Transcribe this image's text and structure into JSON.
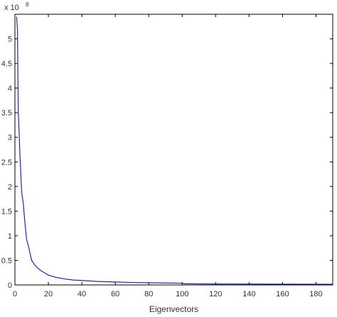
{
  "chart_data": {
    "type": "line",
    "title": "",
    "xlabel": "Eigenvectors",
    "ylabel": "",
    "y_exponent_label": "x 10",
    "y_exponent": "8",
    "xlim": [
      0,
      190
    ],
    "ylim": [
      0,
      5.5
    ],
    "x_ticks": [
      0,
      20,
      40,
      60,
      80,
      100,
      120,
      140,
      160,
      180
    ],
    "x_tick_labels": [
      "0",
      "20",
      "40",
      "60",
      "80",
      "100",
      "120",
      "140",
      "160",
      "180"
    ],
    "y_ticks": [
      0,
      0.5,
      1,
      1.5,
      2,
      2.5,
      3,
      3.5,
      4,
      4.5,
      5
    ],
    "y_tick_labels": [
      "0",
      "0.5",
      "1",
      "1.5",
      "2",
      "2.5",
      "3",
      "3.5",
      "4",
      "4.5",
      "5"
    ],
    "grid": false,
    "series": [
      {
        "color": "#1f2aa8",
        "x": [
          1,
          1.5,
          2,
          3,
          4,
          5,
          6,
          7,
          8,
          9,
          10,
          12,
          14,
          16,
          18,
          20,
          25,
          30,
          35,
          40,
          50,
          60,
          70,
          80,
          90,
          100,
          101,
          110,
          120,
          140,
          160,
          180,
          190
        ],
        "y": [
          5.45,
          5.2,
          3.55,
          2.65,
          1.9,
          1.65,
          1.25,
          0.92,
          0.8,
          0.65,
          0.5,
          0.4,
          0.33,
          0.28,
          0.24,
          0.2,
          0.15,
          0.12,
          0.1,
          0.09,
          0.07,
          0.06,
          0.05,
          0.045,
          0.04,
          0.035,
          0.025,
          0.022,
          0.02,
          0.018,
          0.016,
          0.015,
          0.014
        ]
      }
    ]
  }
}
